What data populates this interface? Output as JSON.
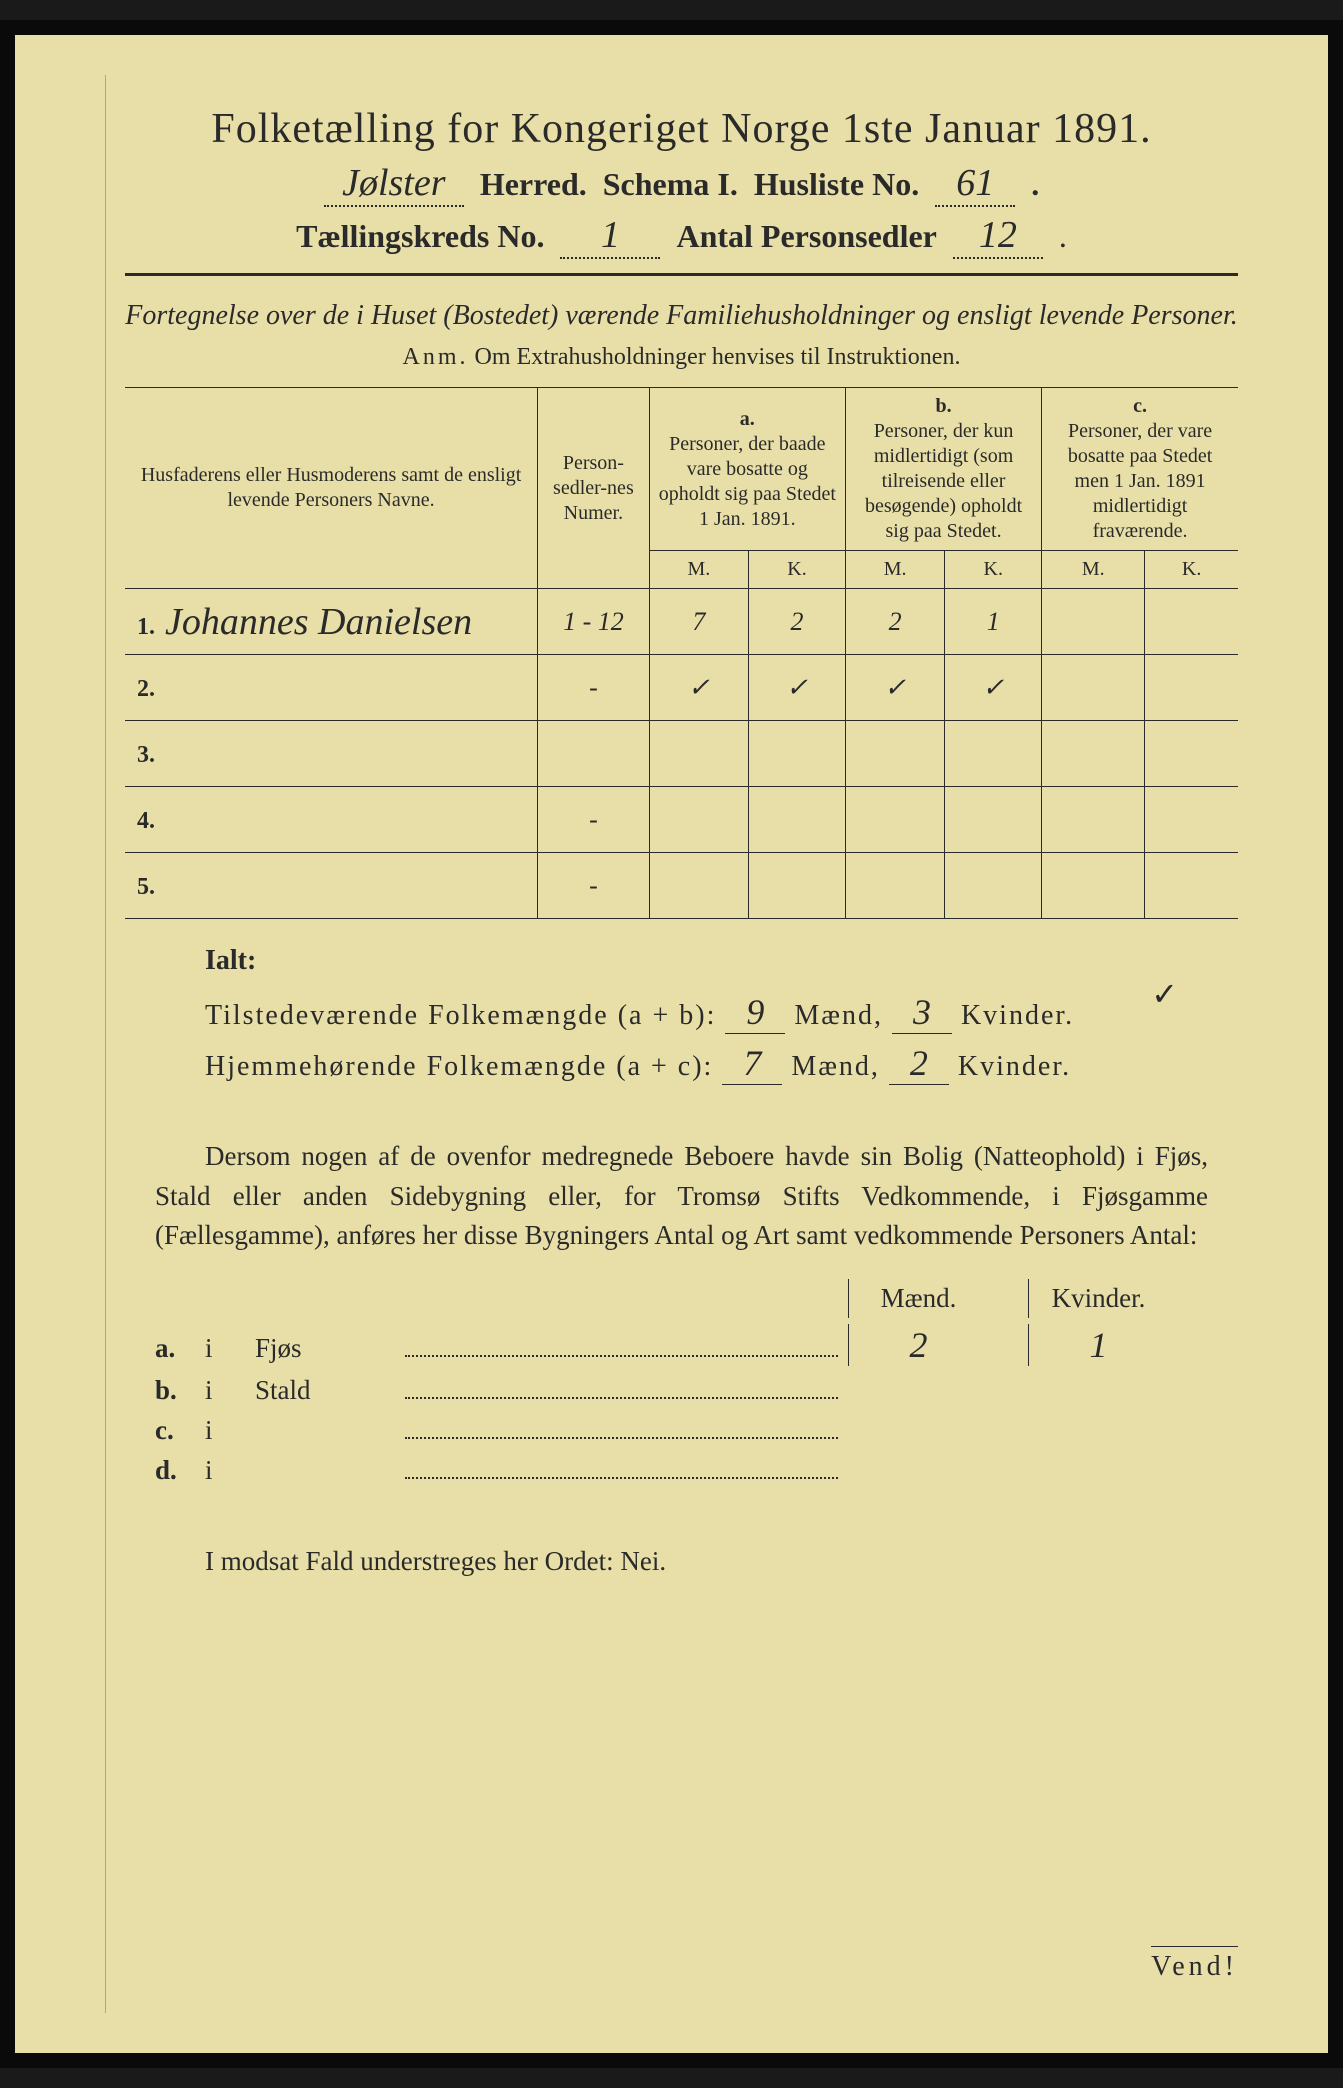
{
  "title": "Folketælling for Kongeriget Norge 1ste Januar 1891.",
  "header": {
    "herred_value": "Jølster",
    "herred_label": "Herred.",
    "schema_label": "Schema I.",
    "husliste_label": "Husliste No.",
    "husliste_value": "61",
    "kreds_label": "Tællingskreds No.",
    "kreds_value": "1",
    "personsedler_label": "Antal Personsedler",
    "personsedler_value": "12"
  },
  "subtitle": "Fortegnelse over de i Huset (Bostedet) værende Familiehusholdninger og ensligt levende Personer.",
  "anm_label": "Anm.",
  "anm_text": "Om Extrahusholdninger henvises til Instruktionen.",
  "columns": {
    "name": "Husfaderens eller Husmoderens samt de ensligt levende Personers Navne.",
    "num": "Person-sedler-nes Numer.",
    "a_head": "a.",
    "a": "Personer, der baade vare bosatte og opholdt sig paa Stedet 1 Jan. 1891.",
    "b_head": "b.",
    "b": "Personer, der kun midlertidigt (som tilreisende eller besøgende) opholdt sig paa Stedet.",
    "c_head": "c.",
    "c": "Personer, der vare bosatte paa Stedet men 1 Jan. 1891 midlertidigt fraværende.",
    "m": "M.",
    "k": "K."
  },
  "rows": [
    {
      "n": "1.",
      "name": "Johannes Danielsen",
      "num": "1 - 12",
      "am": "7",
      "ak": "2",
      "bm": "2",
      "bk": "1",
      "cm": "",
      "ck": ""
    },
    {
      "n": "2.",
      "name": "",
      "num": "-",
      "am": "✓",
      "ak": "✓",
      "bm": "✓",
      "bk": "✓",
      "cm": "",
      "ck": ""
    },
    {
      "n": "3.",
      "name": "",
      "num": "",
      "am": "",
      "ak": "",
      "bm": "",
      "bk": "",
      "cm": "",
      "ck": ""
    },
    {
      "n": "4.",
      "name": "",
      "num": "-",
      "am": "",
      "ak": "",
      "bm": "",
      "bk": "",
      "cm": "",
      "ck": ""
    },
    {
      "n": "5.",
      "name": "",
      "num": "-",
      "am": "",
      "ak": "",
      "bm": "",
      "bk": "",
      "cm": "",
      "ck": ""
    }
  ],
  "ialt": {
    "title": "Ialt:",
    "row1_label": "Tilstedeværende Folkemængde (a + b):",
    "row1_m": "9",
    "row1_k": "3",
    "row2_label": "Hjemmehørende Folkemængde (a + c):",
    "row2_m": "7",
    "row2_k": "2",
    "maend": "Mænd,",
    "kvinder": "Kvinder."
  },
  "paragraph": "Dersom nogen af de ovenfor medregnede Beboere havde sin Bolig (Natteophold) i Fjøs, Stald eller anden Sidebygning eller, for Tromsø Stifts Vedkommende, i Fjøsgamme (Fællesgamme), anføres her disse Bygningers Antal og Art samt vedkommende Personers Antal:",
  "buildings": {
    "maend": "Mænd.",
    "kvinder": "Kvinder.",
    "rows": [
      {
        "l": "a.",
        "i": "i",
        "name": "Fjøs",
        "m": "2",
        "k": "1"
      },
      {
        "l": "b.",
        "i": "i",
        "name": "Stald",
        "m": "",
        "k": ""
      },
      {
        "l": "c.",
        "i": "i",
        "name": "",
        "m": "",
        "k": ""
      },
      {
        "l": "d.",
        "i": "i",
        "name": "",
        "m": "",
        "k": ""
      }
    ]
  },
  "footer": "I modsat Fald understreges her Ordet: Nei.",
  "vend": "Vend!",
  "topcheck": "✓"
}
